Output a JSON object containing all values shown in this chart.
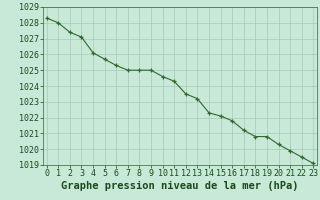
{
  "x": [
    0,
    1,
    2,
    3,
    4,
    5,
    6,
    7,
    8,
    9,
    10,
    11,
    12,
    13,
    14,
    15,
    16,
    17,
    18,
    19,
    20,
    21,
    22,
    23
  ],
  "y": [
    1028.3,
    1028.0,
    1027.4,
    1027.1,
    1026.1,
    1025.7,
    1025.3,
    1025.0,
    1025.0,
    1025.0,
    1024.6,
    1024.3,
    1023.5,
    1023.2,
    1022.3,
    1022.1,
    1021.8,
    1021.2,
    1020.8,
    1020.8,
    1020.3,
    1019.9,
    1019.5,
    1019.1
  ],
  "ylim": [
    1019,
    1029
  ],
  "xlim": [
    -0.3,
    23.3
  ],
  "yticks": [
    1019,
    1020,
    1021,
    1022,
    1023,
    1024,
    1025,
    1026,
    1027,
    1028,
    1029
  ],
  "xticks": [
    0,
    1,
    2,
    3,
    4,
    5,
    6,
    7,
    8,
    9,
    10,
    11,
    12,
    13,
    14,
    15,
    16,
    17,
    18,
    19,
    20,
    21,
    22,
    23
  ],
  "line_color": "#2d6a2d",
  "marker": "+",
  "bg_color": "#c8e8d8",
  "grid_color": "#a8c8b8",
  "xlabel": "Graphe pression niveau de la mer (hPa)",
  "xlabel_color": "#1a4a1a",
  "tick_color": "#1a4a1a",
  "tick_fontsize": 6,
  "xlabel_fontsize": 7.5,
  "spine_color": "#2d6a2d"
}
